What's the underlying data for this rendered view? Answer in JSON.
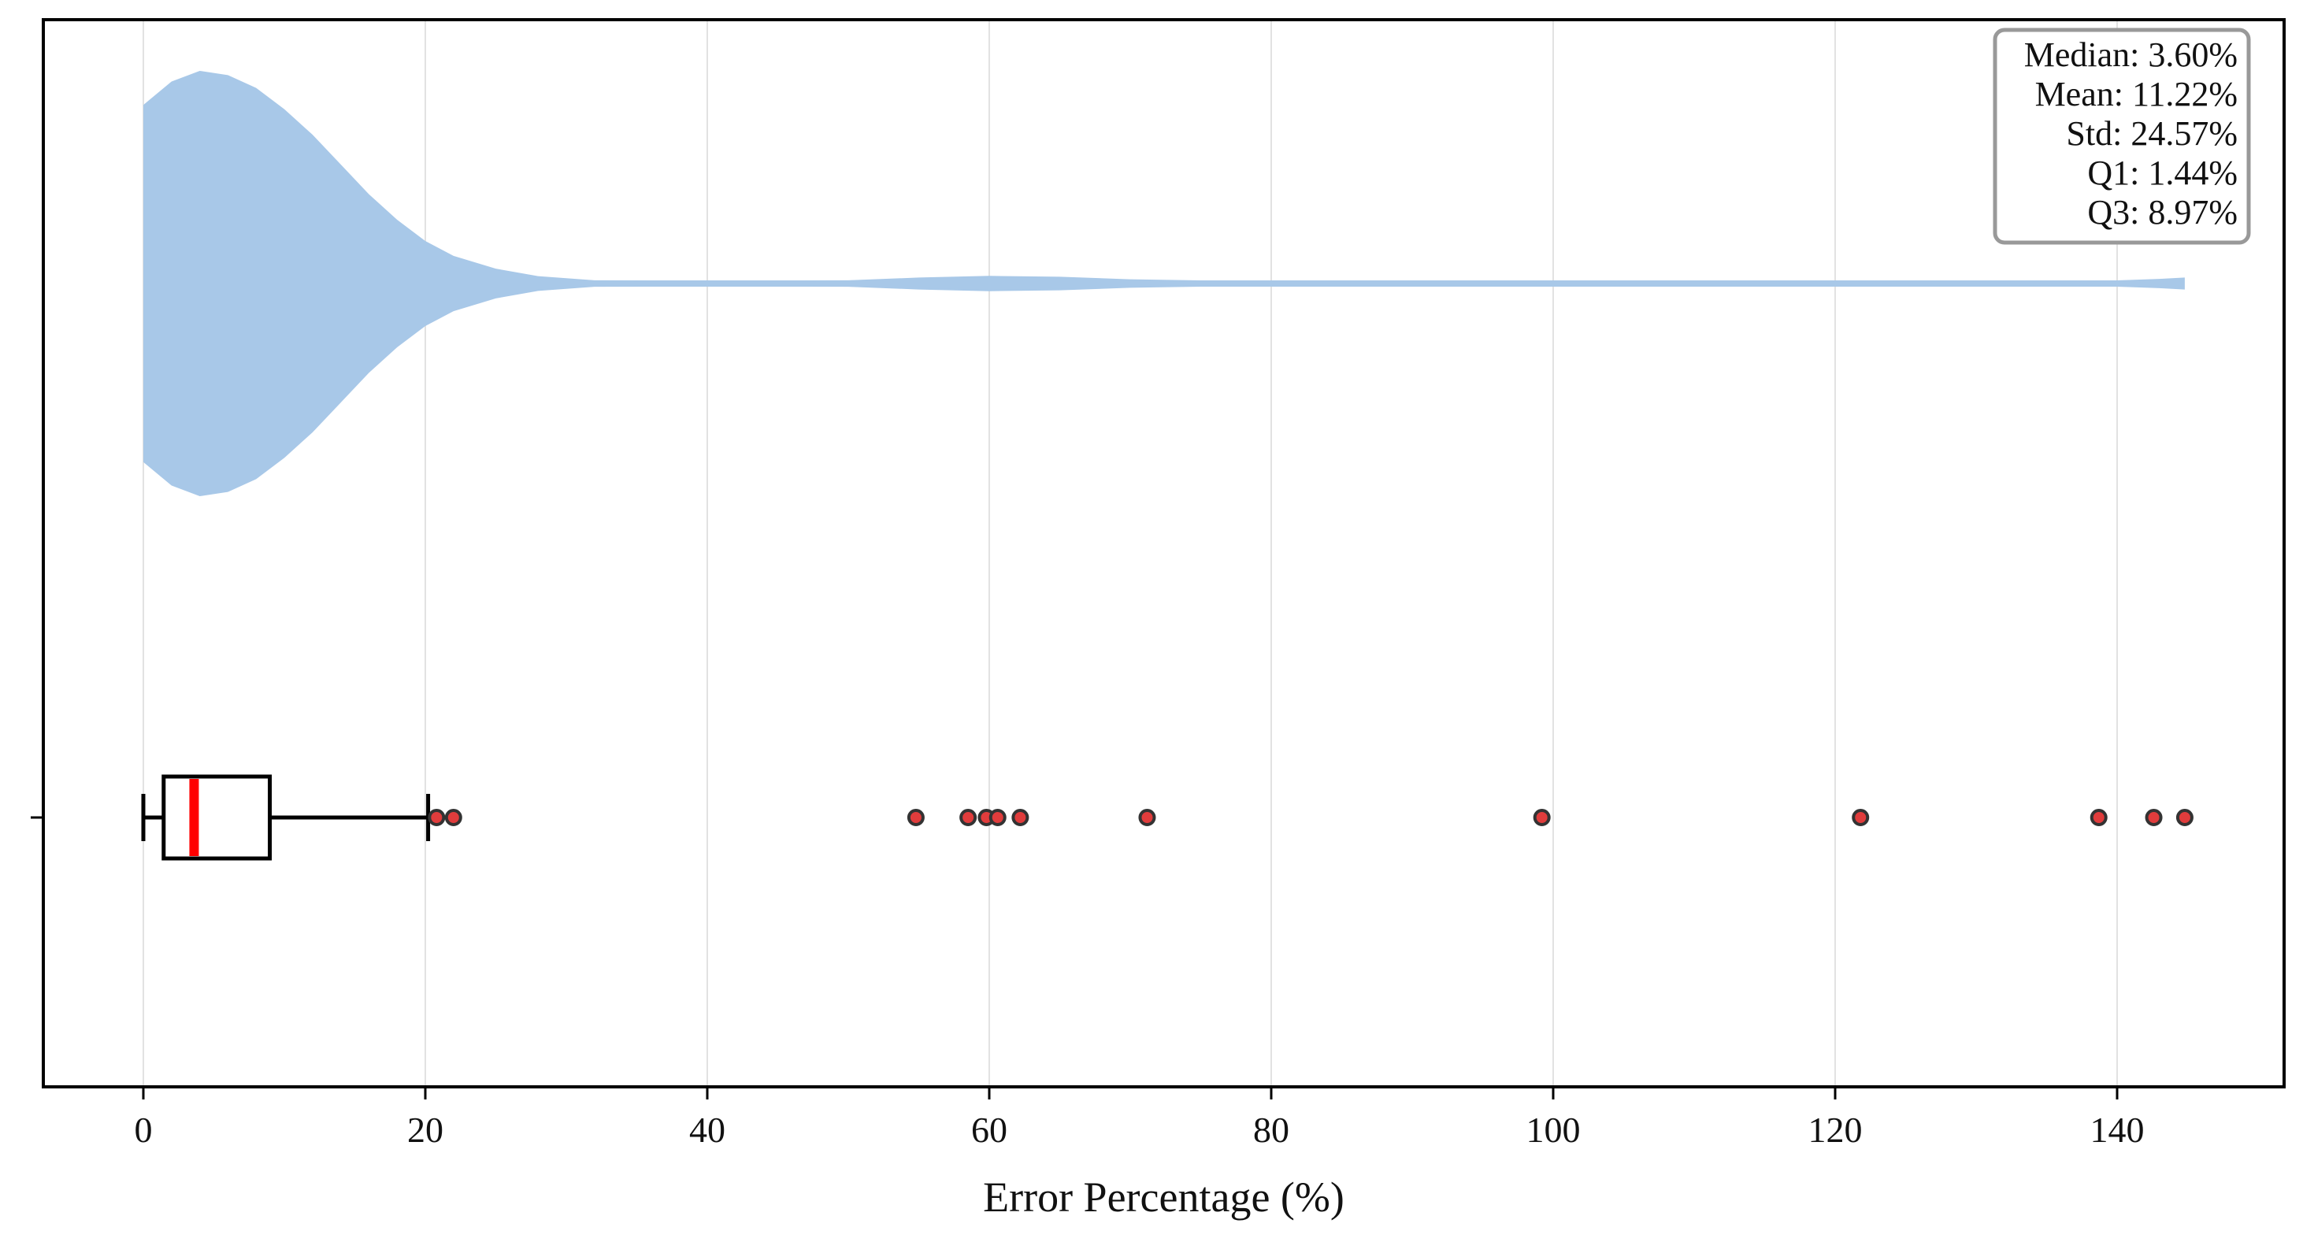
{
  "chart_data": {
    "type": "violin-box",
    "orientation": "horizontal",
    "xlabel": "Error Percentage (%)",
    "xlim": [
      -7,
      152
    ],
    "x_ticks": [
      0,
      20,
      40,
      60,
      80,
      100,
      120,
      140
    ],
    "x_tick_labels": [
      "0",
      "20",
      "40",
      "60",
      "80",
      "100",
      "120",
      "140"
    ],
    "grid": "vertical",
    "violin": {
      "color": "#a8c8e8",
      "data_min": 0.0,
      "data_max": 144.8,
      "density_profile": [
        [
          0,
          0.84
        ],
        [
          2,
          0.95
        ],
        [
          4,
          1.0
        ],
        [
          6,
          0.98
        ],
        [
          8,
          0.92
        ],
        [
          10,
          0.82
        ],
        [
          12,
          0.7
        ],
        [
          14,
          0.56
        ],
        [
          16,
          0.42
        ],
        [
          18,
          0.3
        ],
        [
          20,
          0.2
        ],
        [
          22,
          0.13
        ],
        [
          25,
          0.07
        ],
        [
          28,
          0.035
        ],
        [
          32,
          0.015
        ],
        [
          36,
          0.006
        ],
        [
          40,
          0.002
        ],
        [
          45,
          0.005
        ],
        [
          50,
          0.015
        ],
        [
          55,
          0.028
        ],
        [
          60,
          0.036
        ],
        [
          65,
          0.032
        ],
        [
          70,
          0.02
        ],
        [
          75,
          0.009
        ],
        [
          80,
          0.003
        ],
        [
          90,
          0.002
        ],
        [
          100,
          0.003
        ],
        [
          110,
          0.003
        ],
        [
          120,
          0.004
        ],
        [
          130,
          0.005
        ],
        [
          140,
          0.012
        ],
        [
          143,
          0.022
        ],
        [
          144.8,
          0.028
        ]
      ]
    },
    "box": {
      "whisker_low": 0.0,
      "q1": 1.44,
      "median": 3.6,
      "q3": 8.97,
      "whisker_high": 20.2,
      "median_color": "#ff0000",
      "outliers": [
        20.8,
        22.0,
        54.8,
        58.5,
        59.8,
        60.6,
        62.2,
        71.2,
        99.2,
        121.8,
        138.7,
        142.6,
        144.8
      ],
      "outlier_color": "#e03c3c"
    },
    "stats_box": {
      "position": "top-right",
      "lines": [
        "Median: 3.60%",
        "Mean: 11.22%",
        "Std: 24.57%",
        "Q1: 1.44%",
        "Q3: 8.97%"
      ]
    }
  }
}
